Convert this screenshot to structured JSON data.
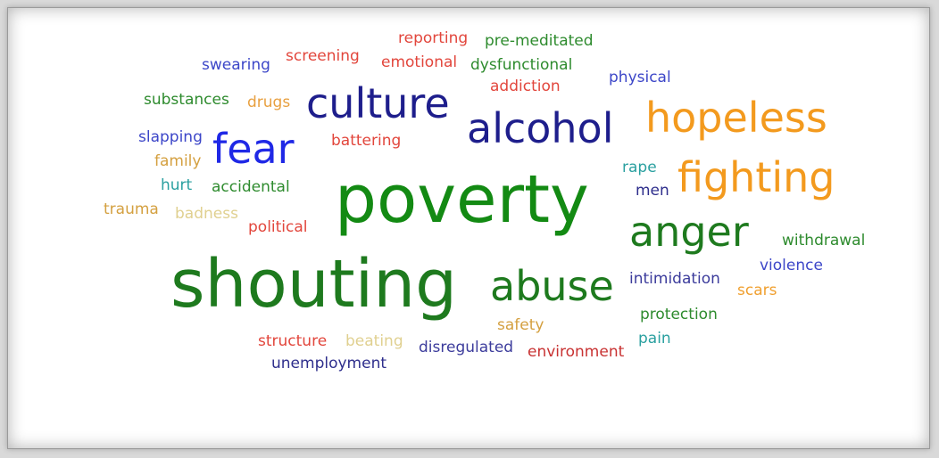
{
  "word_cloud": {
    "words": [
      {
        "text": "reporting",
        "color": "#e2463c"
      },
      {
        "text": "pre-meditated",
        "color": "#2e8b2e"
      },
      {
        "text": "swearing",
        "color": "#3c46c8"
      },
      {
        "text": "screening",
        "color": "#e2463c"
      },
      {
        "text": "emotional",
        "color": "#e2463c"
      },
      {
        "text": "dysfunctional",
        "color": "#2e8b2e"
      },
      {
        "text": "physical",
        "color": "#3c46c8"
      },
      {
        "text": "addiction",
        "color": "#e2463c"
      },
      {
        "text": "substances",
        "color": "#2e8b2e"
      },
      {
        "text": "drugs",
        "color": "#e8a040"
      },
      {
        "text": "culture",
        "color": "#1e1e8c"
      },
      {
        "text": "alcohol",
        "color": "#1e1e8c"
      },
      {
        "text": "hopeless",
        "color": "#f39a1e"
      },
      {
        "text": "slapping",
        "color": "#3c46c8"
      },
      {
        "text": "fear",
        "color": "#1f28e6"
      },
      {
        "text": "battering",
        "color": "#e2463c"
      },
      {
        "text": "family",
        "color": "#d4a040"
      },
      {
        "text": "rape",
        "color": "#2aa0a0"
      },
      {
        "text": "fighting",
        "color": "#f39a1e"
      },
      {
        "text": "hurt",
        "color": "#2aa0a0"
      },
      {
        "text": "accidental",
        "color": "#2e8b2e"
      },
      {
        "text": "men",
        "color": "#2e2e8c"
      },
      {
        "text": "poverty",
        "color": "#138a13"
      },
      {
        "text": "trauma",
        "color": "#d4a040"
      },
      {
        "text": "badness",
        "color": "#e0d090"
      },
      {
        "text": "political",
        "color": "#e2463c"
      },
      {
        "text": "anger",
        "color": "#1e7a1e"
      },
      {
        "text": "withdrawal",
        "color": "#2e8b2e"
      },
      {
        "text": "violence",
        "color": "#3c46c8"
      },
      {
        "text": "shouting",
        "color": "#1e7a1e"
      },
      {
        "text": "abuse",
        "color": "#1e7a1e"
      },
      {
        "text": "intimidation",
        "color": "#3c3c9c"
      },
      {
        "text": "scars",
        "color": "#f0a030"
      },
      {
        "text": "protection",
        "color": "#2e8b2e"
      },
      {
        "text": "safety",
        "color": "#d4a040"
      },
      {
        "text": "pain",
        "color": "#2aa0a0"
      },
      {
        "text": "structure",
        "color": "#e2463c"
      },
      {
        "text": "beating",
        "color": "#e0d090"
      },
      {
        "text": "disregulated",
        "color": "#3c3c9c"
      },
      {
        "text": "environment",
        "color": "#c83232"
      },
      {
        "text": "unemployment",
        "color": "#2e2e8c"
      }
    ]
  }
}
